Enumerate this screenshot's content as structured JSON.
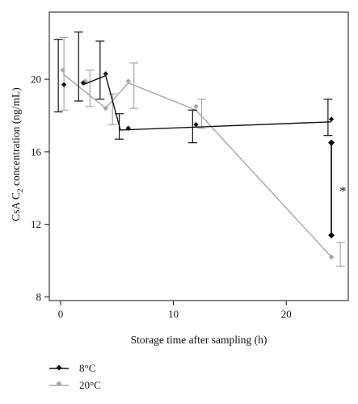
{
  "chart_data": {
    "type": "line",
    "xlabel": "Storage time after sampling (h)",
    "ylabel_main": "CsA C",
    "ylabel_sub": "2",
    "ylabel_rest": " concentration (ng/mL)",
    "xlim": [
      -1,
      25.5
    ],
    "ylim": [
      7.8,
      23.7
    ],
    "x_ticks": [
      0,
      10,
      20
    ],
    "y_ticks": [
      8,
      12,
      16,
      20
    ],
    "grid": false,
    "legend_position": "bottom-left",
    "annotation": "*",
    "colors": {
      "8C": "#111111",
      "20C": "#a6a6a6"
    },
    "series": [
      {
        "name": "8°C",
        "color": "#111111",
        "error_x": [
          -0.2,
          1.6,
          3.5,
          5.2,
          11.7,
          23.7
        ],
        "points": [
          {
            "x": 0.3,
            "y": 19.7,
            "yerr_low": 18.2,
            "yerr_high": 22.2
          },
          {
            "x": 2.0,
            "y": 19.8,
            "yerr_low": 18.8,
            "yerr_high": 22.6
          },
          {
            "x": 4.0,
            "y": 20.3,
            "yerr_low": 18.9,
            "yerr_high": 22.1
          },
          {
            "x": 6.0,
            "y": 17.3,
            "yerr_low": 16.7,
            "yerr_high": 18.1
          },
          {
            "x": 12.0,
            "y": 17.5,
            "yerr_low": 16.5,
            "yerr_high": 18.3
          },
          {
            "x": 24.0,
            "y": 17.8,
            "yerr_low": 16.9,
            "yerr_high": 18.9
          }
        ],
        "line": [
          {
            "x": 2.0,
            "y": 19.7
          },
          {
            "x": 4.0,
            "y": 20.2
          },
          {
            "x": 5.3,
            "y": 17.2
          },
          {
            "x": 24.0,
            "y": 17.65
          }
        ]
      },
      {
        "name": "20°C",
        "color": "#a6a6a6",
        "error_x": [
          0.3,
          2.6,
          4.6,
          6.5,
          12.5,
          24.8
        ],
        "points": [
          {
            "x": 0.2,
            "y": 20.5,
            "yerr_low": 18.3,
            "yerr_high": 22.3
          },
          {
            "x": 2.2,
            "y": 19.9,
            "yerr_low": 18.5,
            "yerr_high": 20.5
          },
          {
            "x": 4.0,
            "y": 18.4,
            "yerr_low": 17.5,
            "yerr_high": 19.2
          },
          {
            "x": 6.0,
            "y": 19.9,
            "yerr_low": 18.4,
            "yerr_high": 20.9
          },
          {
            "x": 12.0,
            "y": 18.5,
            "yerr_low": 17.3,
            "yerr_high": 18.9
          },
          {
            "x": 24.0,
            "y": 10.2,
            "yerr_low": 9.7,
            "yerr_high": 11.0
          }
        ],
        "line": [
          {
            "x": 0.2,
            "y": 20.3
          },
          {
            "x": 4.0,
            "y": 18.4
          },
          {
            "x": 6.0,
            "y": 19.8
          },
          {
            "x": 12.0,
            "y": 18.3
          },
          {
            "x": 24.0,
            "y": 10.2
          }
        ]
      }
    ],
    "significance_bracket": {
      "x": 24.0,
      "y_top": 16.5,
      "y_bottom": 11.4
    }
  }
}
